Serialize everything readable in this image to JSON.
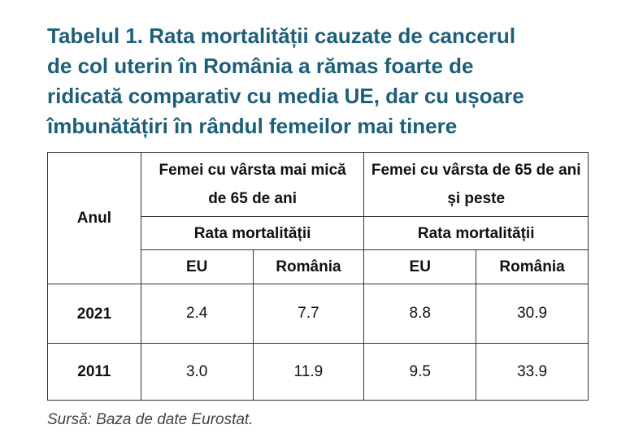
{
  "header": {
    "title_lines": [
      "Tabelul 1. Rata mortalității cauzate de cancerul",
      "de col uterin în România a rămas foarte de",
      "ridicată comparativ cu media UE, dar cu ușoare",
      "îmbunătățiri în rândul femeilor mai tinere"
    ]
  },
  "table": {
    "year_header": "Anul",
    "group_headers": [
      "Femei cu vârsta mai mică de 65 de ani",
      "Femei cu vârsta de 65 de ani și peste"
    ],
    "metric_headers": [
      "Rata mortalității",
      "Rata mortalității"
    ],
    "column_headers": [
      "EU",
      "România",
      "EU",
      "România"
    ],
    "rows": [
      [
        "2021",
        "2.4",
        "7.7",
        "8.8",
        "30.9"
      ],
      [
        "2011",
        "3.0",
        "11.9",
        "9.5",
        "33.9"
      ]
    ]
  },
  "footer": {
    "source": "Sursă: Baza de date Eurostat."
  }
}
